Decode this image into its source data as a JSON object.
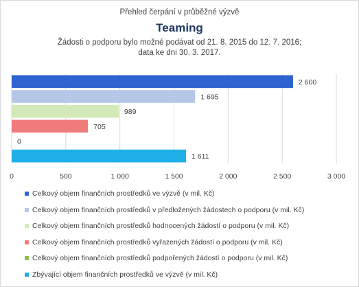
{
  "header": {
    "pretitle": "Přehled čerpání v průběžné  výzvě",
    "title": "Teaming",
    "subtitle_line1": "Žádosti o podporu bylo možné  podávat od 21. 8. 2015 do 12. 7. 2016;",
    "subtitle_line2": "data ke dni 30. 3. 2017."
  },
  "chart_data": {
    "type": "bar",
    "orientation": "horizontal",
    "series": [
      {
        "name": "Celkový objem finančních prostředků ve výzvě (v mil. Kč)",
        "value": 2600,
        "label": "2 600",
        "color": "#2e62cf"
      },
      {
        "name": "Celkový objem finančních prostředků v předložených žádostech o podporu (v mil. Kč)",
        "value": 1695,
        "label": "1 695",
        "color": "#b4c7e7"
      },
      {
        "name": "Celkový objem finančních prostředků hodnocených žádostí o podporu (v mil. Kč)",
        "value": 989,
        "label": "989",
        "color": "#d3e9b8"
      },
      {
        "name": "Celkový objem finančních prostředků vyřazených žádostí o podporu (v mil. Kč)",
        "value": 705,
        "label": "705",
        "color": "#f07b7b"
      },
      {
        "name": "Celkový objem finančních prostředků podpořených žádostí o podporu (v mil. Kč)",
        "value": 0,
        "label": "0",
        "color": "#8cc152"
      },
      {
        "name": "Zbývající objem finančních prostředků ve výzvě (v mil. Kč)",
        "value": 1611,
        "label": "1 611",
        "color": "#1fb0e8"
      }
    ],
    "xlim": [
      0,
      3000
    ],
    "xticks": [
      {
        "value": 0,
        "label": "0"
      },
      {
        "value": 500,
        "label": "500"
      },
      {
        "value": 1000,
        "label": "1 000"
      },
      {
        "value": 1500,
        "label": "1 500"
      },
      {
        "value": 2000,
        "label": "2 000"
      },
      {
        "value": 2500,
        "label": "2 500"
      },
      {
        "value": 3000,
        "label": "3 000"
      }
    ],
    "grid": "vertical",
    "legend_position": "bottom"
  }
}
